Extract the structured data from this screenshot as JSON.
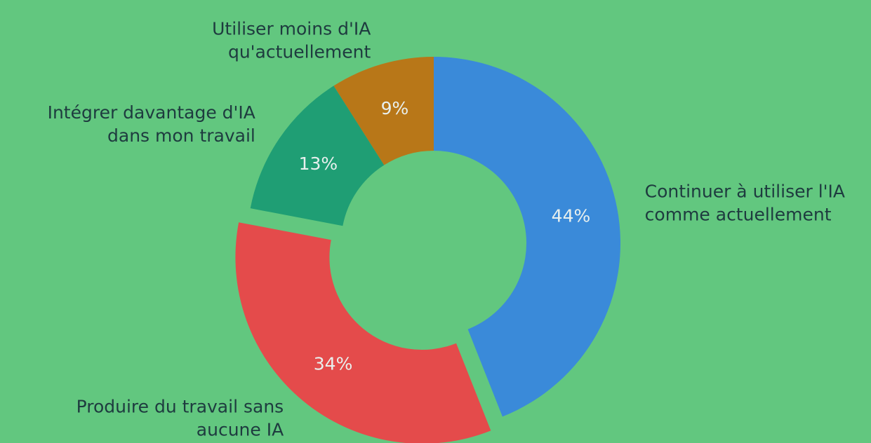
{
  "chart_data": {
    "type": "donut",
    "categories": [
      [
        "Continuer à utiliser l'IA",
        "comme actuellement"
      ],
      [
        "Produire du travail sans",
        "aucune IA"
      ],
      [
        "Intégrer davantage d'IA",
        "dans mon travail"
      ],
      [
        "Utiliser moins d'IA",
        "qu'actuellement"
      ]
    ],
    "values": [
      44,
      34,
      13,
      9
    ],
    "value_labels": [
      "44%",
      "34%",
      "13%",
      "9%"
    ],
    "colors": [
      "#3a8ad9",
      "#e44b4b",
      "#1f9e74",
      "#b87718"
    ],
    "explode": [
      false,
      true,
      false,
      false
    ]
  }
}
